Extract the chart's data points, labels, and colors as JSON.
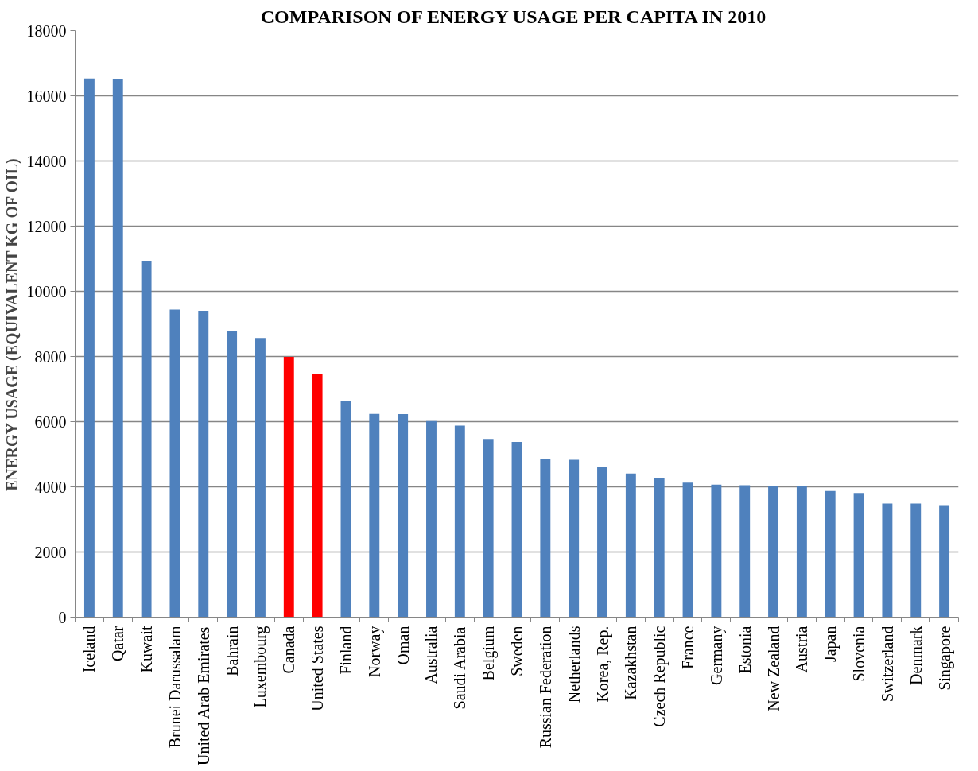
{
  "chart_data": {
    "type": "bar",
    "title": "COMPARISON OF ENERGY USAGE PER CAPITA  IN 2010",
    "ylabel": "ENERGY USAGE (EQUIVALENT KG OF OIL)",
    "categories": [
      "Iceland",
      "Qatar",
      "Kuwait",
      "Brunei Darussalam",
      "United Arab Emirates",
      "Bahrain",
      "Luxembourg",
      "Canada",
      "United States",
      "Finland",
      "Norway",
      "Oman",
      "Australia",
      "Saudi Arabia",
      "Belgium",
      "Sweden",
      "Russian Federation",
      "Netherlands",
      "Korea, Rep.",
      "Kazakhstan",
      "Czech Republic",
      "France",
      "Germany",
      "Estonia",
      "New Zealand",
      "Austria",
      "Japan",
      "Slovenia",
      "Switzerland",
      "Denmark",
      "Singapore"
    ],
    "values": [
      16530,
      16500,
      10940,
      9440,
      9400,
      8790,
      8570,
      7990,
      7470,
      6640,
      6240,
      6230,
      6020,
      5880,
      5470,
      5380,
      4840,
      4830,
      4620,
      4410,
      4260,
      4130,
      4070,
      4050,
      4020,
      4010,
      3870,
      3810,
      3490,
      3490,
      3440
    ],
    "colors": [
      "#4f81bd",
      "#4f81bd",
      "#4f81bd",
      "#4f81bd",
      "#4f81bd",
      "#4f81bd",
      "#4f81bd",
      "#ff0000",
      "#ff0000",
      "#4f81bd",
      "#4f81bd",
      "#4f81bd",
      "#4f81bd",
      "#4f81bd",
      "#4f81bd",
      "#4f81bd",
      "#4f81bd",
      "#4f81bd",
      "#4f81bd",
      "#4f81bd",
      "#4f81bd",
      "#4f81bd",
      "#4f81bd",
      "#4f81bd",
      "#4f81bd",
      "#4f81bd",
      "#4f81bd",
      "#4f81bd",
      "#4f81bd",
      "#4f81bd",
      "#4f81bd"
    ],
    "ylim": [
      0,
      18000
    ],
    "yticks": [
      0,
      2000,
      4000,
      6000,
      8000,
      10000,
      12000,
      14000,
      16000,
      18000
    ],
    "grid": "y"
  }
}
